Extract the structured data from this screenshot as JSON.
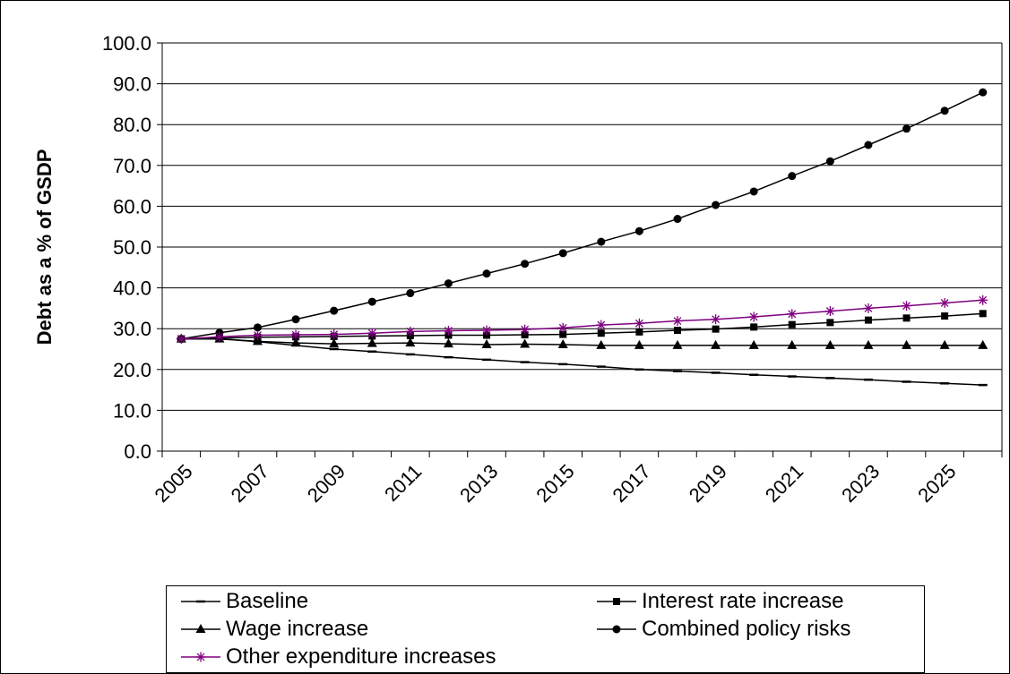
{
  "chart_data": {
    "type": "line",
    "title": "",
    "xlabel": "",
    "ylabel": "Debt as a % of GSDP",
    "ylim": [
      0,
      100
    ],
    "yticks": [
      "0.0",
      "10.0",
      "20.0",
      "30.0",
      "40.0",
      "50.0",
      "60.0",
      "70.0",
      "80.0",
      "90.0",
      "100.0"
    ],
    "x": [
      2005,
      2006,
      2007,
      2008,
      2009,
      2010,
      2011,
      2012,
      2013,
      2014,
      2015,
      2016,
      2017,
      2018,
      2019,
      2020,
      2021,
      2022,
      2023,
      2024,
      2025,
      2026
    ],
    "xtick_labels": [
      "2005",
      "2007",
      "2009",
      "2011",
      "2013",
      "2015",
      "2017",
      "2019",
      "2021",
      "2023",
      "2025"
    ],
    "grid": "horizontal",
    "legend_position": "bottom",
    "series": [
      {
        "name": "Baseline",
        "color": "#000000",
        "marker": "dash",
        "values": [
          27.5,
          27.5,
          26.8,
          25.9,
          25.0,
          24.4,
          23.7,
          23.0,
          22.4,
          21.8,
          21.3,
          20.7,
          20.0,
          19.6,
          19.2,
          18.7,
          18.3,
          17.9,
          17.5,
          17.0,
          16.6,
          16.2
        ]
      },
      {
        "name": "Interest rate increase",
        "color": "#000000",
        "marker": "square",
        "values": [
          27.5,
          27.7,
          27.9,
          28.0,
          28.1,
          28.2,
          28.3,
          28.4,
          28.4,
          28.5,
          28.6,
          28.9,
          29.2,
          29.6,
          29.9,
          30.4,
          31.0,
          31.5,
          32.1,
          32.6,
          33.1,
          33.7
        ]
      },
      {
        "name": "Wage increase",
        "color": "#000000",
        "marker": "triangle",
        "values": [
          27.5,
          27.5,
          26.9,
          26.5,
          26.3,
          26.4,
          26.5,
          26.3,
          26.1,
          26.2,
          26.1,
          25.9,
          25.9,
          25.9,
          25.9,
          25.9,
          25.9,
          25.9,
          25.9,
          25.9,
          25.9,
          25.9
        ]
      },
      {
        "name": "Combined policy risks",
        "color": "#000000",
        "marker": "circle",
        "values": [
          27.5,
          29.0,
          30.3,
          32.3,
          34.4,
          36.6,
          38.7,
          41.1,
          43.5,
          45.9,
          48.5,
          51.3,
          53.9,
          56.9,
          60.3,
          63.6,
          67.4,
          71.0,
          75.0,
          79.0,
          83.4,
          87.9
        ]
      },
      {
        "name": "Other expenditure increases",
        "color": "#800080",
        "marker": "star",
        "values": [
          27.5,
          28.0,
          28.4,
          28.5,
          28.6,
          28.9,
          29.3,
          29.5,
          29.6,
          29.8,
          30.2,
          30.9,
          31.3,
          31.9,
          32.3,
          32.9,
          33.6,
          34.3,
          35.0,
          35.6,
          36.3,
          37.0
        ]
      }
    ]
  }
}
